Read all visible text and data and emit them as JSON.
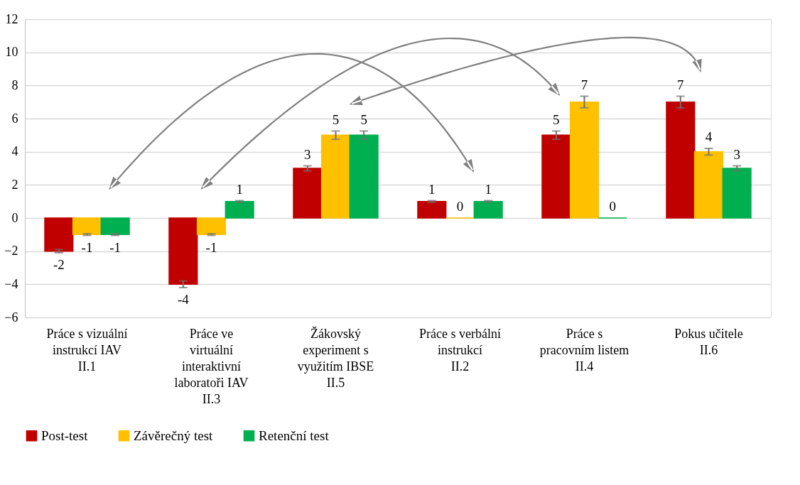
{
  "chart_data": {
    "type": "bar",
    "categories": [
      "Práce s vizuální\ninstrukcí IAV\n\n\n\nII.1",
      "Práce ve\nvirtuální\ninteraktivní\nlaboratoři IAV\n\nII.3",
      "Žákovský\nexperiment s\nvyužitím IBSE\n\n\nII.5",
      "Práce s verbální\ninstrukcí\n\n\n\nII.2",
      "Práce s\npracovním listem\n\n\n\nII.4",
      "Pokus učitele\n\n\n\n\nII.6"
    ],
    "series": [
      {
        "name": "Post-test",
        "color": "#c00000",
        "values": [
          -2,
          -4,
          3,
          1,
          5,
          7
        ],
        "errors": [
          0.1,
          0.2,
          0.15,
          0.05,
          0.25,
          0.35
        ]
      },
      {
        "name": "Závěrečný test",
        "color": "#ffc000",
        "values": [
          -1,
          -1,
          5,
          0,
          7,
          4
        ],
        "errors": [
          0.05,
          0.05,
          0.25,
          0,
          0.35,
          0.2
        ]
      },
      {
        "name": "Retenční test",
        "color": "#00b050",
        "values": [
          -1,
          1,
          5,
          1,
          0,
          3
        ],
        "errors": [
          0.05,
          0.05,
          0.25,
          0.05,
          0,
          0.15
        ]
      }
    ],
    "ylim": [
      -6,
      12
    ],
    "yticks": [
      -6,
      -4,
      -2,
      0,
      2,
      4,
      6,
      8,
      10,
      12
    ],
    "grid": "y",
    "legend": "bottom",
    "data_labels": true
  }
}
